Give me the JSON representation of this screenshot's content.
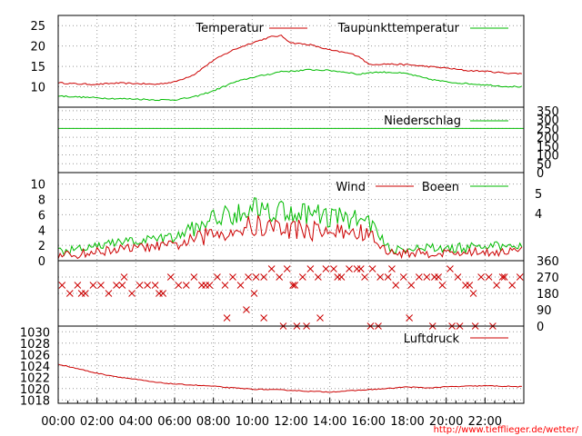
{
  "colors": {
    "red": "#cc0000",
    "green": "#00bb00",
    "grid": "#999999",
    "source": "#ff0000"
  },
  "x_ticks": [
    "00:00",
    "02:00",
    "04:00",
    "06:00",
    "08:00",
    "10:00",
    "12:00",
    "14:00",
    "16:00",
    "18:00",
    "20:00",
    "22:00"
  ],
  "source_text": "http://www.tiefflieger.de/wetter/",
  "chart_data": [
    {
      "type": "line",
      "id": "temperature",
      "x_unit": "hour of day",
      "series": [
        {
          "name": "Temperatur",
          "color": "#cc0000",
          "x": [
            0,
            1,
            2,
            3,
            4,
            5,
            6,
            7,
            8,
            9,
            10,
            11,
            11.5,
            12,
            13,
            14,
            15,
            15.5,
            16,
            17,
            18,
            19,
            20,
            21,
            22,
            23,
            24
          ],
          "y": [
            11,
            10.7,
            10.6,
            10.9,
            10.8,
            10.6,
            11.2,
            13,
            16.5,
            19,
            20.8,
            22.3,
            22.5,
            20.8,
            20.3,
            19,
            18.2,
            17.5,
            15.5,
            15.6,
            15.4,
            15,
            14.6,
            14,
            13.8,
            13.4,
            13.2
          ]
        },
        {
          "name": "Taupunkttemperatur",
          "color": "#00bb00",
          "x": [
            0,
            1,
            2,
            3,
            4,
            5,
            6,
            7,
            8,
            9,
            10,
            11,
            11.5,
            12,
            13,
            14,
            15,
            15.5,
            16,
            17,
            18,
            19,
            20,
            21,
            22,
            23,
            24
          ],
          "y": [
            7.8,
            7.5,
            7.3,
            7.1,
            7,
            6.8,
            6.8,
            7.5,
            9,
            11,
            12.3,
            13.2,
            13.8,
            13.8,
            14.2,
            14,
            13.5,
            13,
            13.5,
            13.6,
            13.2,
            12,
            11.2,
            10.8,
            10.5,
            10.1,
            10
          ]
        }
      ],
      "yticks": [
        10,
        15,
        20,
        25
      ],
      "ylim": [
        5,
        27.5
      ]
    },
    {
      "type": "line",
      "id": "precipitation",
      "series": [
        {
          "name": "Niederschlag",
          "color": "#00bb00",
          "constant": 250
        }
      ],
      "yticks": [
        0,
        50,
        100,
        150,
        200,
        250,
        300,
        350
      ],
      "ylim": [
        0,
        370
      ]
    },
    {
      "type": "line",
      "id": "wind",
      "series": [
        {
          "name": "Wind",
          "color": "#cc0000",
          "profile_x": [
            0,
            3,
            6,
            8,
            10,
            12,
            14,
            16,
            17,
            20,
            24
          ],
          "profile_y": [
            0.5,
            1.5,
            2,
            3.5,
            4.5,
            4.2,
            3.8,
            3.5,
            1,
            1,
            1.3
          ]
        },
        {
          "name": "Boeen",
          "color": "#00bb00",
          "profile_x": [
            0,
            3,
            6,
            8,
            10,
            12,
            14,
            16,
            17,
            20,
            24
          ],
          "profile_y": [
            1,
            2.3,
            3,
            5.5,
            7,
            6.4,
            5.8,
            5.2,
            1.6,
            1.6,
            2
          ]
        }
      ],
      "yticks_left": [
        0,
        2,
        4,
        6,
        8,
        10
      ],
      "ylim": [
        0,
        11.5
      ],
      "yticks_right": [
        4,
        5
      ]
    },
    {
      "type": "scatter",
      "id": "wind_direction",
      "series": [
        {
          "color": "#cc0000",
          "x": [
            0.2,
            0.6,
            1,
            1.4,
            1.8,
            2.2,
            2.6,
            3,
            3.4,
            3.8,
            4.2,
            4.6,
            5,
            5.4,
            5.8,
            6.2,
            6.6,
            7,
            7.4,
            7.8,
            8.2,
            8.6,
            9,
            9.4,
            9.8,
            10.2,
            10.6,
            11,
            11.4,
            11.8,
            12.2,
            12.6,
            13,
            13.4,
            13.8,
            14.2,
            14.6,
            15,
            15.4,
            15.8,
            16.2,
            16.6,
            17,
            17.4,
            17.8,
            18.2,
            18.6,
            19,
            19.4,
            19.8,
            20.2,
            20.6,
            21,
            21.4,
            21.8,
            22.2,
            22.6,
            23,
            23.4,
            23.8,
            8.7,
            9.7,
            10.6,
            11.6,
            12.3,
            12.8,
            13.5,
            16.1,
            16.5,
            18.1,
            19.3,
            20.3,
            20.7,
            21.5,
            22.4,
            1.2,
            3.3,
            5.2,
            7.6,
            10.1,
            12.1,
            14.4,
            15.6,
            17.2,
            19.6,
            21.2,
            22.9
          ],
          "y": [
            225,
            180,
            225,
            180,
            225,
            225,
            180,
            225,
            270,
            180,
            225,
            225,
            225,
            180,
            270,
            225,
            225,
            270,
            225,
            225,
            270,
            225,
            270,
            225,
            270,
            270,
            270,
            315,
            270,
            315,
            225,
            270,
            315,
            270,
            315,
            315,
            270,
            315,
            315,
            270,
            315,
            270,
            270,
            225,
            270,
            225,
            270,
            270,
            270,
            225,
            315,
            270,
            225,
            180,
            270,
            270,
            225,
            270,
            225,
            270,
            45,
            90,
            45,
            0,
            0,
            0,
            45,
            0,
            0,
            45,
            0,
            0,
            0,
            0,
            0,
            180,
            225,
            180,
            225,
            180,
            225,
            270,
            315,
            315,
            270,
            225,
            270
          ]
        }
      ],
      "yticks": [
        0,
        90,
        180,
        270,
        360
      ],
      "ylim": [
        0,
        360
      ]
    },
    {
      "type": "line",
      "id": "pressure",
      "series": [
        {
          "name": "Luftdruck",
          "color": "#cc0000",
          "x": [
            0,
            1,
            2,
            3,
            4,
            5,
            6,
            7,
            8,
            9,
            10,
            11,
            12,
            13,
            14,
            15,
            16,
            17,
            18,
            19,
            20,
            21,
            22,
            23,
            24
          ],
          "y": [
            1024.3,
            1023.5,
            1022.7,
            1022.1,
            1021.6,
            1021.1,
            1020.8,
            1020.6,
            1020.4,
            1020.1,
            1019.9,
            1019.8,
            1019.7,
            1019.5,
            1019.4,
            1019.6,
            1019.8,
            1020,
            1020.3,
            1020.1,
            1020.3,
            1020.4,
            1020.5,
            1020.4,
            1020.3
          ]
        }
      ],
      "yticks": [
        1018,
        1020,
        1022,
        1024,
        1026,
        1028,
        1030
      ],
      "ylim": [
        1017.4,
        1031
      ]
    }
  ]
}
